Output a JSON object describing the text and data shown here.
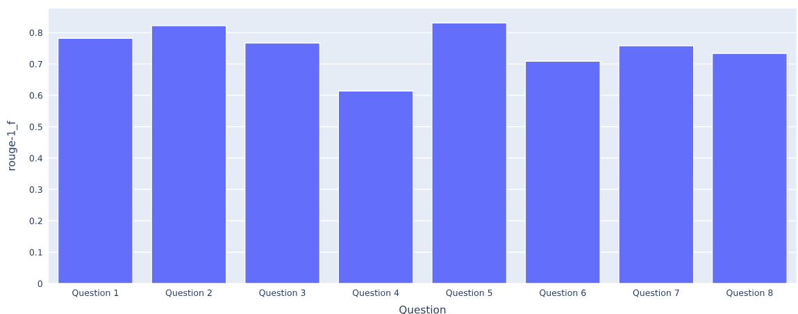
{
  "chart_data": {
    "type": "bar",
    "xlabel": "Question",
    "ylabel": "rouge-1_f",
    "categories": [
      "Question 1",
      "Question 2",
      "Question 3",
      "Question 4",
      "Question 5",
      "Question 6",
      "Question 7",
      "Question 8"
    ],
    "values": [
      0.782,
      0.822,
      0.767,
      0.614,
      0.831,
      0.709,
      0.758,
      0.734
    ],
    "color": "#636efa",
    "ylim": [
      0,
      0.877
    ],
    "yticks": [
      0,
      0.1,
      0.2,
      0.3,
      0.4,
      0.5,
      0.6,
      0.7,
      0.8
    ],
    "grid": "y"
  }
}
